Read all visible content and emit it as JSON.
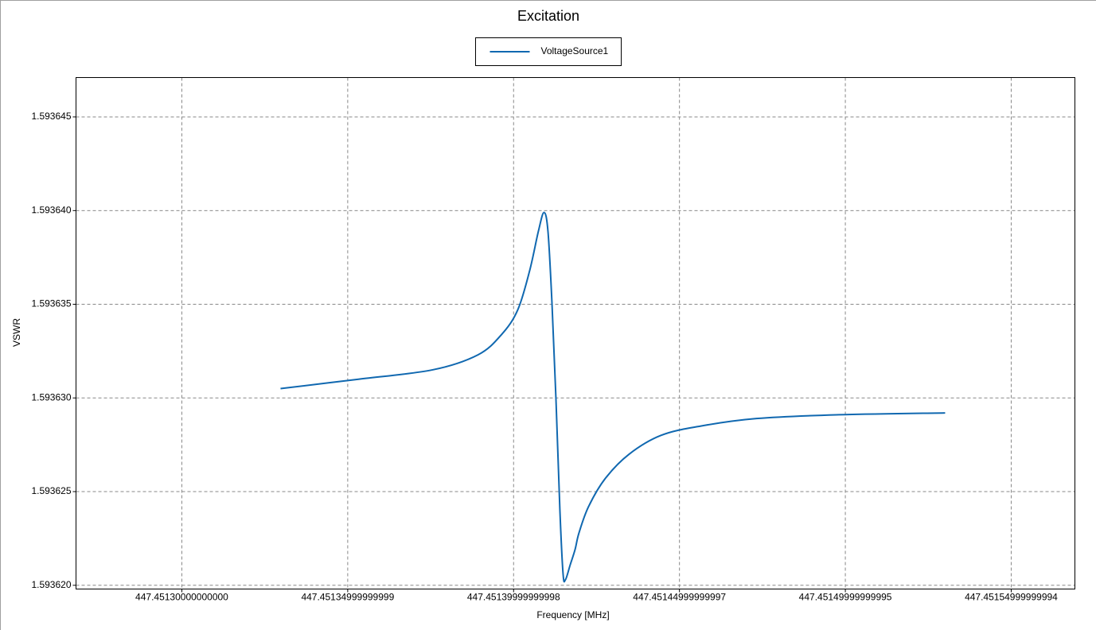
{
  "chart_data": {
    "type": "line",
    "title": "Excitation",
    "x_label": "Frequency [MHz]",
    "y_label": "VSWR",
    "legend": "top",
    "grid": true,
    "xlim": [
      447.4512681,
      447.4515692
    ],
    "ylim": [
      1.5936198,
      1.5936471
    ],
    "xticks": [
      {
        "value": 447.4513,
        "label": "447.45130000000000"
      },
      {
        "value": 447.45135,
        "label": "447.45134999999999"
      },
      {
        "value": 447.4514,
        "label": "447.45139999999998"
      },
      {
        "value": 447.45145,
        "label": "447.45144999999997"
      },
      {
        "value": 447.4515,
        "label": "447.45149999999995"
      },
      {
        "value": 447.45155,
        "label": "447.45154999999994"
      }
    ],
    "yticks": [
      {
        "value": 1.59362,
        "label": "1.593620"
      },
      1.593625,
      {
        "value": 1.59363,
        "label": "1.593630"
      },
      1.593635,
      {
        "value": 1.59364,
        "label": "1.593640"
      },
      1.593645
    ],
    "x": [
      447.45132975,
      447.45135326,
      447.45137558,
      447.45138925,
      447.45139645,
      447.45140125,
      447.45140485,
      447.45140748,
      447.45140916,
      447.45141036,
      447.45141156,
      447.45141276,
      447.45141396,
      447.45141492,
      447.45141564,
      447.45141708,
      447.45141852,
      447.45141972,
      447.4514226,
      447.45142764,
      447.45143484,
      447.45144443,
      447.45145643,
      447.45147322,
      447.45149721,
      447.45153008
    ],
    "series": [
      {
        "name": "VoltageSource1",
        "color": "#1068b0",
        "values": [
          1.5936305,
          1.593631,
          1.5936315,
          1.5936323,
          1.5936334,
          1.5936347,
          1.5936368,
          1.5936389,
          1.5936399,
          1.5936389,
          1.5936351,
          1.59363,
          1.593624,
          1.5936206,
          1.5936203,
          1.5936211,
          1.5936219,
          1.5936228,
          1.5936242,
          1.5936257,
          1.593627,
          1.593628,
          1.5936285,
          1.5936289,
          1.5936291,
          1.5936292
        ]
      }
    ]
  }
}
